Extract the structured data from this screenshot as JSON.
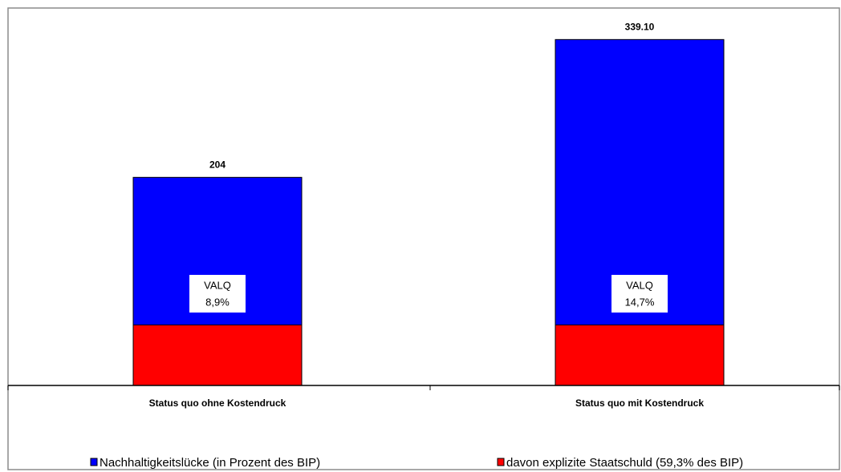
{
  "chart_data": {
    "type": "overlap-bar",
    "categories": [
      "Status quo ohne Kostendruck",
      "Status quo mit Kostendruck"
    ],
    "series": [
      {
        "name": "Nachhaltigkeitslücke (in Prozent des BIP)",
        "color": "#0000ff",
        "values": [
          204,
          339.1
        ],
        "value_labels": [
          "204",
          "339.10"
        ]
      },
      {
        "name": "davon explizite Staatschuld (59,3% des BIP)",
        "color": "#ff0000",
        "values": [
          59.3,
          59.3
        ]
      }
    ],
    "annotations": [
      {
        "lines": [
          "VALQ",
          "8,9%"
        ]
      },
      {
        "lines": [
          "VALQ",
          "14,7%"
        ]
      }
    ],
    "ylim": [
      0,
      370
    ],
    "legend": "bottom"
  }
}
